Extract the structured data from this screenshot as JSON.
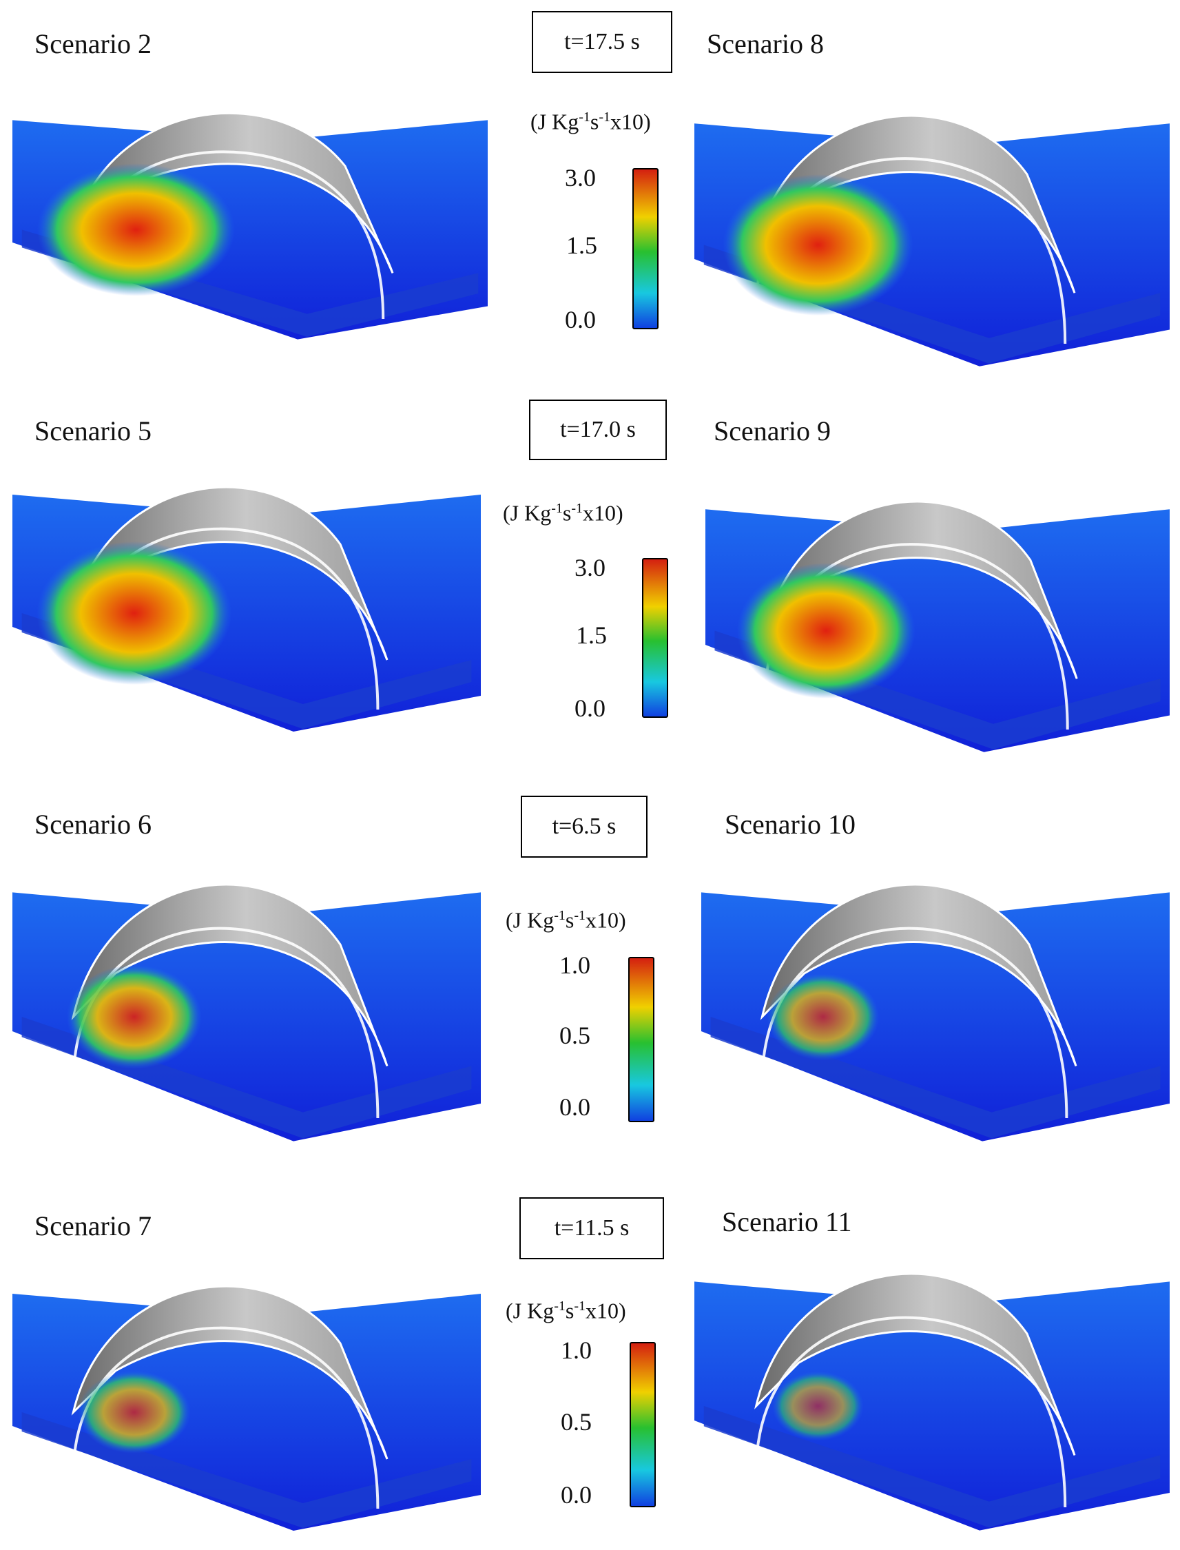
{
  "rows": [
    {
      "left_label": "Scenario 2",
      "right_label": "Scenario 8",
      "time": "t=17.5 s",
      "unit": {
        "prefix": "(J Kg",
        "e1": "-1",
        "mid": "s",
        "e2": "-1",
        "suffix": "x10)"
      },
      "ticks": [
        "3.0",
        "1.5",
        "0.0"
      ],
      "left_intensity": 0.9,
      "right_intensity": 0.85
    },
    {
      "left_label": "Scenario 5",
      "right_label": "Scenario 9",
      "time": "t=17.0 s",
      "unit": {
        "prefix": "(J Kg",
        "e1": "-1",
        "mid": "s",
        "e2": "-1",
        "suffix": "x10)"
      },
      "ticks": [
        "3.0",
        "1.5",
        "0.0"
      ],
      "left_intensity": 0.9,
      "right_intensity": 0.8
    },
    {
      "left_label": "Scenario 6",
      "right_label": "Scenario 10",
      "time": "t=6.5 s",
      "unit": {
        "prefix": "(J Kg",
        "e1": "-1",
        "mid": "s",
        "e2": "-1",
        "suffix": "x10)"
      },
      "ticks": [
        "1.0",
        "0.5",
        "0.0"
      ],
      "left_intensity": 0.5,
      "right_intensity": 0.35
    },
    {
      "left_label": "Scenario 7",
      "right_label": "Scenario 11",
      "time": "t=11.5 s",
      "unit": {
        "prefix": "(J Kg",
        "e1": "-1",
        "mid": "s",
        "e2": "-1",
        "suffix": "x10)"
      },
      "ticks": [
        "1.0",
        "0.5",
        "0.0"
      ],
      "left_intensity": 0.35,
      "right_intensity": 0.2
    }
  ],
  "colors": {
    "water_deep": "#1020d8",
    "water_mid": "#1e6cf0",
    "hot": "#e02010",
    "arch": "#9a9a9a",
    "colorbar_top": "#d42010",
    "colorbar_upper": "#f0d000",
    "colorbar_mid": "#28c030",
    "colorbar_lower": "#18c8e0",
    "colorbar_bottom": "#1040e0"
  }
}
